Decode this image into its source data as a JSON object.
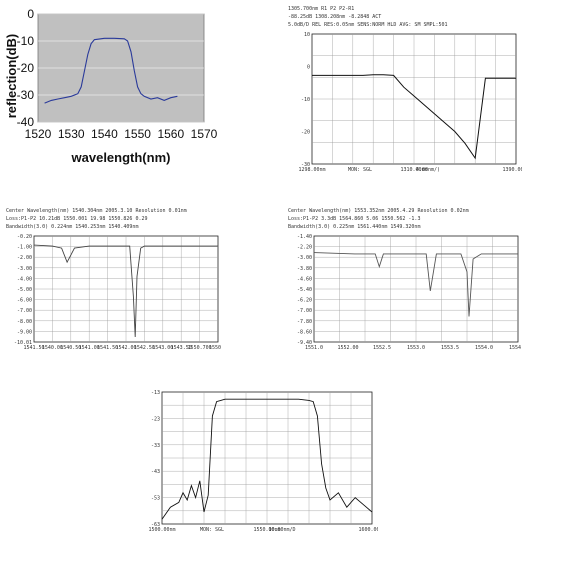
{
  "chart_data": [
    {
      "type": "line",
      "xlabel": "wavelength(nm)",
      "ylabel": "reflection(dB)",
      "xlim": [
        1520,
        1570
      ],
      "ylim": [
        -40,
        0
      ],
      "xticks": [
        "1520",
        "1530",
        "1540",
        "1550",
        "1560",
        "1570"
      ],
      "yticks": [
        "0",
        "-10",
        "-20",
        "-30",
        "-40"
      ],
      "grid": "horizontal",
      "series": [
        {
          "color": "#2a3a9a",
          "x": [
            1522,
            1524,
            1526,
            1528,
            1530,
            1532,
            1533,
            1534,
            1535,
            1536,
            1537,
            1540,
            1543,
            1546,
            1547,
            1548,
            1549,
            1550,
            1551,
            1552,
            1554,
            1556,
            1558,
            1560,
            1562
          ],
          "y": [
            -33,
            -32,
            -31.5,
            -31,
            -30.5,
            -29.5,
            -27,
            -21,
            -15,
            -11,
            -9.5,
            -9,
            -9,
            -9.2,
            -10,
            -14,
            -21,
            -27,
            -29.5,
            -30.5,
            -31.5,
            -31,
            -32,
            -31,
            -30.5
          ]
        }
      ]
    },
    {
      "type": "line",
      "header_lines": [
        "1305.700nm  R1  P2  P2-R1",
        "-88.25dB  1308.208nm  -8.2848  ACT",
        "5.0dB/D  REL  RES:0.05nm  SENS:NORM HLD  AVG:  SM  SMPL:501"
      ],
      "xticks": [
        "1298.00nm",
        "1310.00nm",
        "1390.00nm"
      ],
      "footer_labels": [
        "MON: SGL",
        "4.00nm/)"
      ],
      "yticks": [
        "10",
        "0",
        "-10",
        "-20",
        "-30"
      ],
      "series": [
        {
          "color": "#111111",
          "x": [
            0,
            0.05,
            0.1,
            0.15,
            0.2,
            0.25,
            0.3,
            0.35,
            0.4,
            0.45,
            0.5,
            0.55,
            0.6,
            0.65,
            0.7,
            0.75,
            0.8,
            0.85,
            0.9,
            0.95,
            1.0
          ],
          "y": [
            -2,
            -2,
            -2,
            -2,
            -2,
            -2,
            -1.8,
            -1.8,
            -2,
            -6,
            -9,
            -12,
            -15,
            -18,
            -21,
            -25,
            -30,
            -3,
            -3,
            -3,
            -3
          ]
        }
      ]
    },
    {
      "type": "line",
      "header_lines": [
        "Center Wavelength(nm)  1540.304nm  2005.3.10  Resolution  0.01nm",
        "Loss:P1-P2  10.21dB  1550.001  19.98  1550.826  0.29",
        "Bandwidth(3.0)  0.224nm  1540.253nm  1540.409nm"
      ],
      "yticks": [
        "-0.20",
        "-1.00",
        "-2.00",
        "-3.00",
        "-4.00",
        "-5.00",
        "-6.00",
        "-7.00",
        "-8.00",
        "-9.00",
        "-10.01"
      ],
      "xticks": [
        "1541.50",
        "1540.00",
        "1540.50",
        "1541.00",
        "1541.50",
        "1542.00",
        "1542.50",
        "1543.00",
        "1543.50",
        "1550.700",
        "1550.9"
      ],
      "series": [
        {
          "color": "#444444",
          "x": [
            0,
            0.1,
            0.15,
            0.18,
            0.22,
            0.3,
            0.45,
            0.52,
            0.54,
            0.55,
            0.56,
            0.58,
            0.6,
            0.8,
            1.0
          ],
          "y": [
            -0.9,
            -1,
            -1.2,
            -2.6,
            -1.2,
            -1,
            -1,
            -1,
            -6,
            -10,
            -4,
            -1.2,
            -1,
            -1,
            -1
          ]
        }
      ]
    },
    {
      "type": "line",
      "header_lines": [
        "Center Wavelength(nm)  1553.352nm  2005.4.29  Resolution  0.02nm",
        "Loss:P1-P2  3.3dB  1564.860  5.06  1550.562  -1.3",
        "Bandwidth(3.0)  0.225nm  1561.440nm  1549.320nm"
      ],
      "yticks": [
        "-1.40",
        "-2.20",
        "-3.00",
        "-3.80",
        "-4.60",
        "-5.40",
        "-6.20",
        "-7.00",
        "-7.80",
        "-8.60",
        "-9.40"
      ],
      "xticks": [
        "1551.0",
        "1552.00",
        "1552.5",
        "1553.0",
        "1553.5",
        "1554.0",
        "1554.5"
      ],
      "series": [
        {
          "color": "#555555",
          "x": [
            0,
            0.2,
            0.3,
            0.32,
            0.34,
            0.5,
            0.55,
            0.57,
            0.6,
            0.72,
            0.75,
            0.76,
            0.78,
            0.82,
            1.0
          ],
          "y": [
            -2.5,
            -2.6,
            -2.6,
            -3.6,
            -2.6,
            -2.6,
            -2.6,
            -5.5,
            -2.6,
            -2.6,
            -4,
            -7.5,
            -3,
            -2.6,
            -2.6
          ]
        }
      ]
    },
    {
      "type": "line",
      "yticks": [
        "-13",
        "-23",
        "-33",
        "-43",
        "-53",
        "-63"
      ],
      "xticks": [
        "1500.00nm",
        "1550.00nm",
        "1600.00nm"
      ],
      "footer_labels": [
        "MON: SGL",
        "10.00nm/D"
      ],
      "series": [
        {
          "color": "#111111",
          "x": [
            0,
            0.04,
            0.08,
            0.1,
            0.12,
            0.14,
            0.16,
            0.18,
            0.2,
            0.22,
            0.24,
            0.26,
            0.28,
            0.3,
            0.35,
            0.5,
            0.65,
            0.7,
            0.72,
            0.74,
            0.76,
            0.78,
            0.8,
            0.84,
            0.88,
            0.92,
            0.96,
            1.0
          ],
          "y": [
            -63,
            -58,
            -56,
            -52,
            -55,
            -49,
            -54,
            -47,
            -60,
            -53,
            -20,
            -14,
            -13.5,
            -13,
            -13,
            -13,
            -13,
            -13.5,
            -14,
            -20,
            -40,
            -50,
            -55,
            -52,
            -58,
            -54,
            -57,
            -60
          ]
        }
      ]
    }
  ]
}
